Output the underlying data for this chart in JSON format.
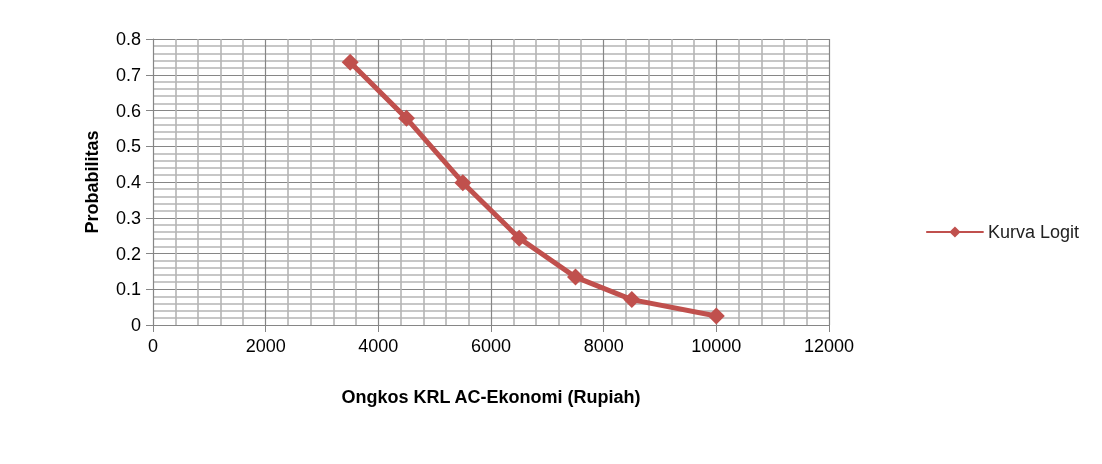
{
  "chart_data": {
    "type": "line",
    "xlabel": "Ongkos KRL AC-Ekonomi (Rupiah)",
    "ylabel": "Probabilitas",
    "x": [
      3500,
      4500,
      5500,
      6500,
      7500,
      8500,
      10000
    ],
    "series": [
      {
        "name": "Kurva Logit",
        "color": "#c0504d",
        "values": [
          0.735,
          0.578,
          0.398,
          0.243,
          0.134,
          0.071,
          0.025
        ]
      }
    ],
    "xlim": [
      0,
      12000
    ],
    "xticks": [
      0,
      2000,
      4000,
      6000,
      8000,
      10000,
      12000
    ],
    "ylim": [
      0,
      0.8
    ],
    "yticks": [
      0,
      0.1,
      0.2,
      0.3,
      0.4,
      0.5,
      0.6,
      0.7,
      0.8
    ],
    "grid": true,
    "legend": "right",
    "marker": "diamond",
    "line_style": "solid"
  }
}
